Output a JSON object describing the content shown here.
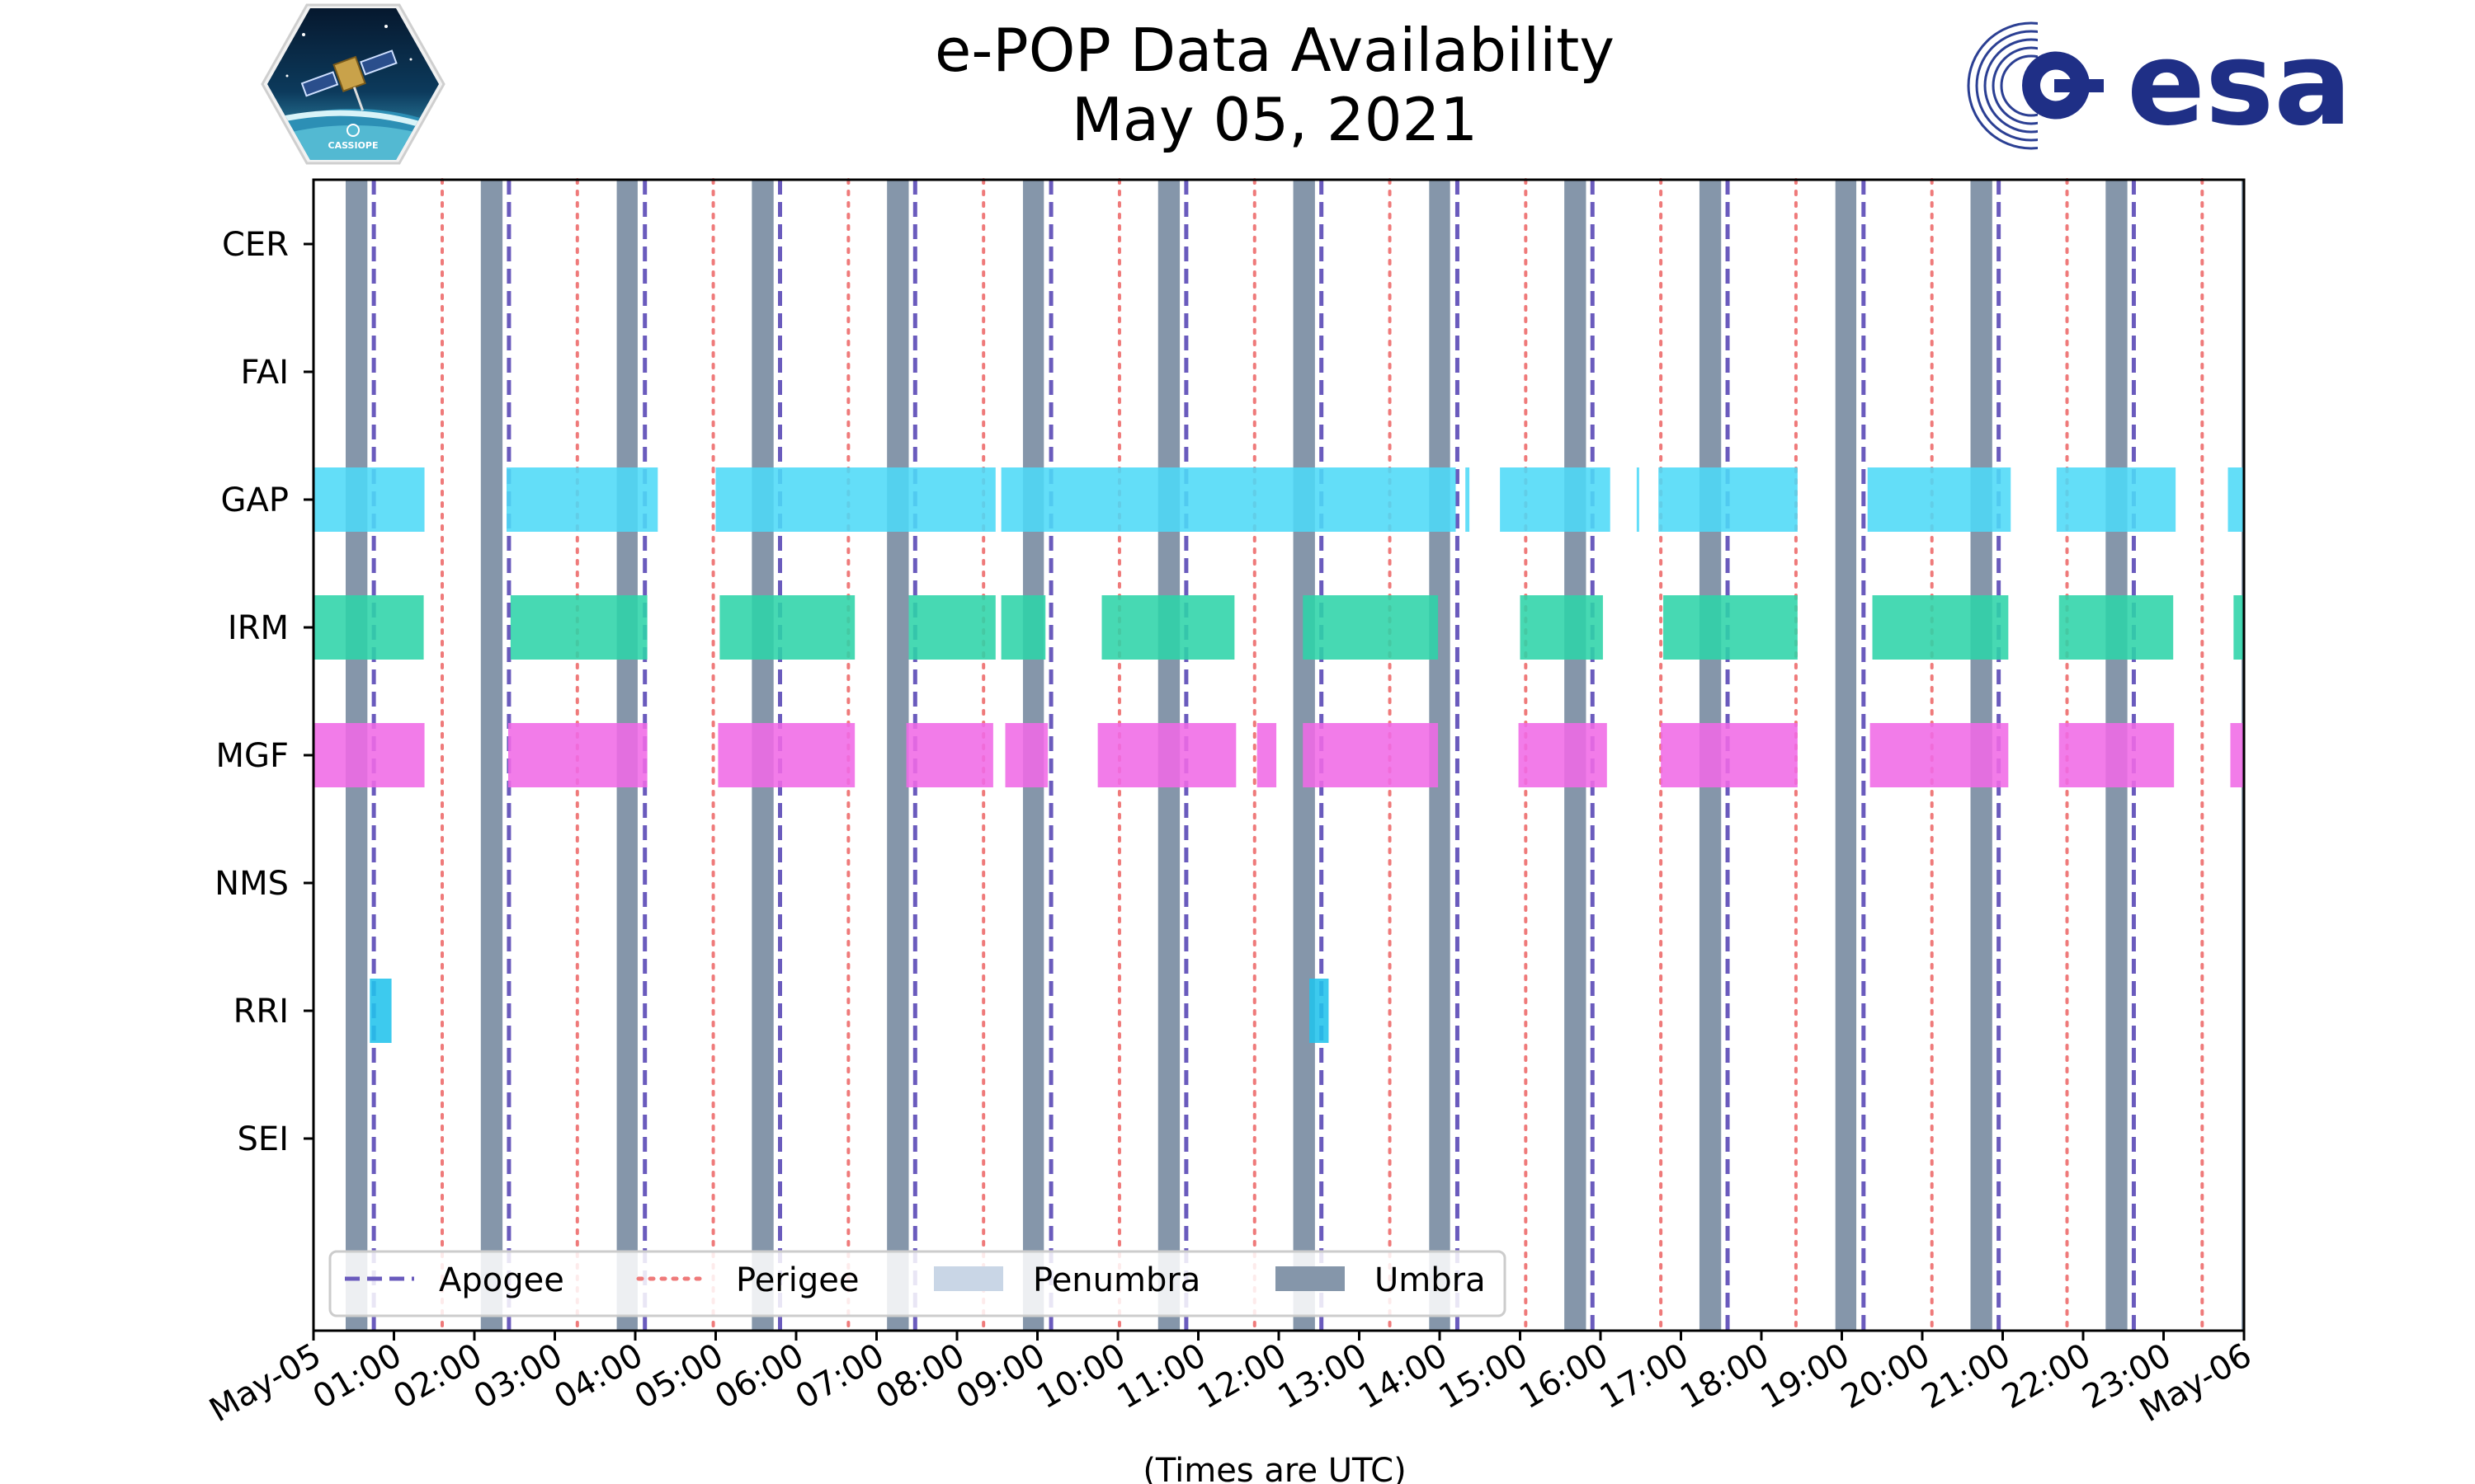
{
  "chart_data": {
    "type": "timeline",
    "title_line1": "e-POP Data Availability",
    "title_line2": "May 05, 2021",
    "xlabel": "(Times are UTC)",
    "x_unit": "hours since 2021-05-05 00:00 UTC",
    "xlim": [
      0,
      24
    ],
    "x_ticks": [
      {
        "hour": 0,
        "label": "May-05"
      },
      {
        "hour": 1,
        "label": "01:00"
      },
      {
        "hour": 2,
        "label": "02:00"
      },
      {
        "hour": 3,
        "label": "03:00"
      },
      {
        "hour": 4,
        "label": "04:00"
      },
      {
        "hour": 5,
        "label": "05:00"
      },
      {
        "hour": 6,
        "label": "06:00"
      },
      {
        "hour": 7,
        "label": "07:00"
      },
      {
        "hour": 8,
        "label": "08:00"
      },
      {
        "hour": 9,
        "label": "09:00"
      },
      {
        "hour": 10,
        "label": "10:00"
      },
      {
        "hour": 11,
        "label": "11:00"
      },
      {
        "hour": 12,
        "label": "12:00"
      },
      {
        "hour": 13,
        "label": "13:00"
      },
      {
        "hour": 14,
        "label": "14:00"
      },
      {
        "hour": 15,
        "label": "15:00"
      },
      {
        "hour": 16,
        "label": "16:00"
      },
      {
        "hour": 17,
        "label": "17:00"
      },
      {
        "hour": 18,
        "label": "18:00"
      },
      {
        "hour": 19,
        "label": "19:00"
      },
      {
        "hour": 20,
        "label": "20:00"
      },
      {
        "hour": 21,
        "label": "21:00"
      },
      {
        "hour": 22,
        "label": "22:00"
      },
      {
        "hour": 23,
        "label": "23:00"
      },
      {
        "hour": 24,
        "label": "May-06"
      }
    ],
    "instruments": [
      "CER",
      "FAI",
      "GAP",
      "IRM",
      "MGF",
      "NMS",
      "RRI",
      "SEI"
    ],
    "series": [
      {
        "name": "CER",
        "color": "#4dd9f7",
        "intervals": []
      },
      {
        "name": "FAI",
        "color": "#4dd9f7",
        "intervals": []
      },
      {
        "name": "GAP",
        "color": "#4dd9f7",
        "intervals": [
          [
            0.0,
            1.38
          ],
          [
            2.4,
            4.28
          ],
          [
            5.0,
            8.48
          ],
          [
            8.55,
            14.2
          ],
          [
            14.32,
            14.37
          ],
          [
            14.75,
            16.12
          ],
          [
            16.45,
            16.47
          ],
          [
            16.72,
            18.45
          ],
          [
            19.32,
            21.1
          ],
          [
            21.67,
            23.15
          ],
          [
            23.8,
            24.0
          ]
        ]
      },
      {
        "name": "IRM",
        "color": "#2dd4a8",
        "intervals": [
          [
            0.0,
            1.37
          ],
          [
            2.45,
            4.15
          ],
          [
            5.05,
            6.73
          ],
          [
            7.4,
            8.48
          ],
          [
            8.55,
            9.1
          ],
          [
            9.8,
            11.45
          ],
          [
            12.3,
            13.98
          ],
          [
            15.0,
            16.03
          ],
          [
            16.78,
            18.45
          ],
          [
            19.38,
            21.07
          ],
          [
            21.7,
            23.12
          ],
          [
            23.87,
            24.0
          ]
        ]
      },
      {
        "name": "MGF",
        "color": "#f06ae6",
        "intervals": [
          [
            0.0,
            1.38
          ],
          [
            2.42,
            4.15
          ],
          [
            5.03,
            6.73
          ],
          [
            7.37,
            8.45
          ],
          [
            8.6,
            9.13
          ],
          [
            9.75,
            11.47
          ],
          [
            11.73,
            11.97
          ],
          [
            12.3,
            13.98
          ],
          [
            14.98,
            16.08
          ],
          [
            16.75,
            18.45
          ],
          [
            19.35,
            21.07
          ],
          [
            21.7,
            23.13
          ],
          [
            23.83,
            24.0
          ]
        ]
      },
      {
        "name": "NMS",
        "color": "#4dd9f7",
        "intervals": []
      },
      {
        "name": "RRI",
        "color": "#22c3ec",
        "intervals": [
          [
            0.7,
            0.97
          ],
          [
            12.38,
            12.62
          ]
        ]
      },
      {
        "name": "SEI",
        "color": "#4dd9f7",
        "intervals": []
      }
    ],
    "umbra": [
      [
        0.4,
        0.67
      ],
      [
        2.08,
        2.35
      ],
      [
        3.77,
        4.03
      ],
      [
        5.45,
        5.72
      ],
      [
        7.13,
        7.4
      ],
      [
        8.82,
        9.08
      ],
      [
        10.5,
        10.77
      ],
      [
        12.18,
        12.45
      ],
      [
        13.87,
        14.13
      ],
      [
        15.55,
        15.82
      ],
      [
        17.23,
        17.5
      ],
      [
        18.92,
        19.18
      ],
      [
        20.6,
        20.87
      ],
      [
        22.28,
        22.55
      ],
      [
        23.97,
        24.0
      ]
    ],
    "penumbra": [],
    "apogee": [
      0.75,
      2.43,
      4.12,
      5.8,
      7.48,
      9.17,
      10.85,
      12.53,
      14.22,
      15.9,
      17.58,
      19.27,
      20.95,
      22.63
    ],
    "perigee": [
      1.6,
      3.28,
      4.97,
      6.65,
      8.33,
      10.02,
      11.7,
      13.38,
      15.07,
      16.75,
      18.43,
      20.12,
      21.8,
      23.48
    ],
    "colors": {
      "umbra": "#8596aa",
      "penumbra": "#c9d6e6",
      "apogee": "#6a5bbd",
      "perigee": "#ef7a7a"
    },
    "legend": {
      "placement": "lower-left",
      "entries": [
        {
          "label": "Apogee",
          "style": "apogee"
        },
        {
          "label": "Perigee",
          "style": "perigee"
        },
        {
          "label": "Penumbra",
          "style": "penumbra"
        },
        {
          "label": "Umbra",
          "style": "umbra"
        }
      ]
    }
  },
  "logos": {
    "left_name": "cassiope-mission-logo",
    "left_text": "CASSIOPE",
    "right_name": "esa-logo",
    "right_text": "esa"
  }
}
